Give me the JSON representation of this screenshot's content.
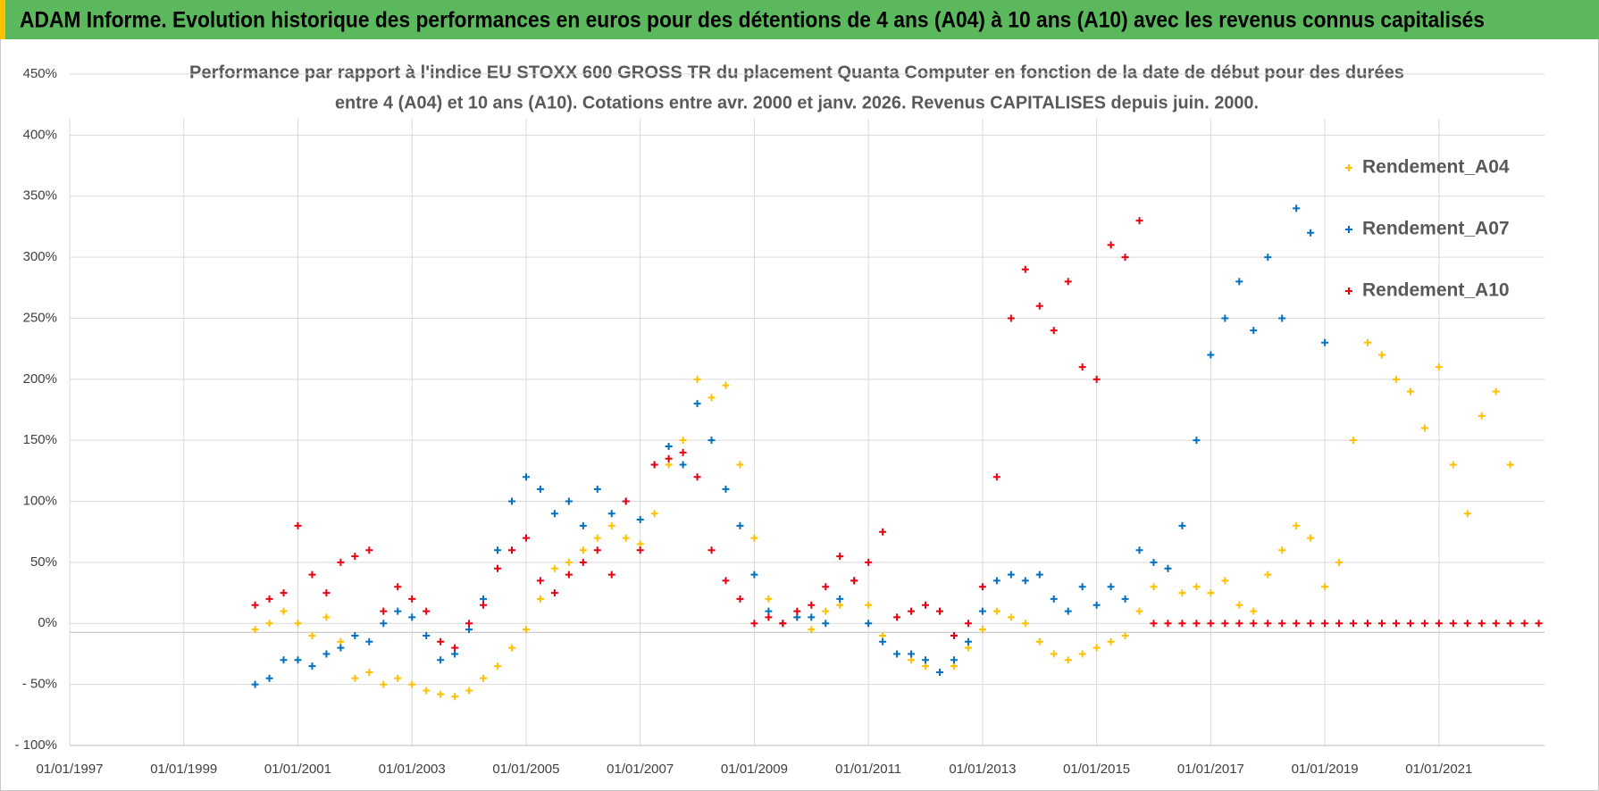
{
  "banner": "ADAM Informe. Evolution historique des performances en euros pour des détentions de 4 ans (A04) à 10 ans (A10) avec les revenus connus capitalisés",
  "chart_data": {
    "type": "scatter",
    "title": [
      "Performance par rapport à l'indice EU STOXX 600 GROSS TR  du placement Quanta Computer  en fonction de la date de début pour des durées",
      "entre 4 (A04) et 10 ans (A10).  Cotations entre avr. 2000 et janv. 2026. Revenus CAPITALISES depuis juin. 2000."
    ],
    "xlim": [
      1997,
      2022.85
    ],
    "xticks": [
      {
        "value": 1997,
        "label": "01/01/1997"
      },
      {
        "value": 1999,
        "label": "01/01/1999"
      },
      {
        "value": 2001,
        "label": "01/01/2001"
      },
      {
        "value": 2003,
        "label": "01/01/2003"
      },
      {
        "value": 2005,
        "label": "01/01/2005"
      },
      {
        "value": 2007,
        "label": "01/01/2007"
      },
      {
        "value": 2009,
        "label": "01/01/2009"
      },
      {
        "value": 2011,
        "label": "01/01/2011"
      },
      {
        "value": 2013,
        "label": "01/01/2013"
      },
      {
        "value": 2015,
        "label": "01/01/2015"
      },
      {
        "value": 2017,
        "label": "01/01/2017"
      },
      {
        "value": 2019,
        "label": "01/01/2019"
      },
      {
        "value": 2021,
        "label": "01/01/2021"
      }
    ],
    "ylim": [
      -100,
      450
    ],
    "yticks": [
      {
        "value": -100,
        "label": "- 100%"
      },
      {
        "value": -50,
        "label": "- 50%"
      },
      {
        "value": 0,
        "label": "0%"
      },
      {
        "value": 50,
        "label": "50%"
      },
      {
        "value": 100,
        "label": "100%"
      },
      {
        "value": 150,
        "label": "150%"
      },
      {
        "value": 200,
        "label": "200%"
      },
      {
        "value": 250,
        "label": "250%"
      },
      {
        "value": 300,
        "label": "300%"
      },
      {
        "value": 350,
        "label": "350%"
      },
      {
        "value": 400,
        "label": "400%"
      },
      {
        "value": 450,
        "label": "450%"
      }
    ],
    "grid": true,
    "legend": "upper right",
    "series": [
      {
        "name": "Rendement_A04",
        "color": "#ffc000",
        "x": [
          2000.25,
          2000.5,
          2000.75,
          2001,
          2001.25,
          2001.5,
          2001.75,
          2002,
          2002.25,
          2002.5,
          2002.75,
          2003,
          2003.25,
          2003.5,
          2003.75,
          2004,
          2004.25,
          2004.5,
          2004.75,
          2005,
          2005.25,
          2005.5,
          2005.75,
          2006,
          2006.25,
          2006.5,
          2006.75,
          2007,
          2007.25,
          2007.5,
          2007.75,
          2008,
          2008.25,
          2008.5,
          2008.75,
          2009,
          2009.25,
          2009.5,
          2009.75,
          2010,
          2010.25,
          2010.5,
          2010.75,
          2011,
          2011.25,
          2011.5,
          2011.75,
          2012,
          2012.25,
          2012.5,
          2012.75,
          2013,
          2013.25,
          2013.5,
          2013.75,
          2014,
          2014.25,
          2014.5,
          2014.75,
          2015,
          2015.25,
          2015.5,
          2015.75,
          2016,
          2016.25,
          2016.5,
          2016.75,
          2017,
          2017.25,
          2017.5,
          2017.75,
          2018,
          2018.25,
          2018.5,
          2018.75,
          2019,
          2019.25,
          2019.5,
          2019.75,
          2020,
          2020.25,
          2020.5,
          2020.75,
          2021,
          2021.25,
          2021.5,
          2021.75,
          2022,
          2022.25
        ],
        "values": [
          -5,
          0,
          10,
          0,
          -10,
          5,
          -15,
          -45,
          -40,
          -50,
          -45,
          -50,
          -55,
          -58,
          -60,
          -55,
          -45,
          -35,
          -20,
          -5,
          20,
          45,
          50,
          60,
          70,
          80,
          70,
          65,
          90,
          130,
          150,
          200,
          185,
          195,
          130,
          70,
          20,
          0,
          5,
          -5,
          10,
          15,
          35,
          15,
          -10,
          -25,
          -30,
          -35,
          -40,
          -35,
          -20,
          -5,
          10,
          5,
          0,
          -15,
          -25,
          -30,
          -25,
          -20,
          -15,
          -10,
          10,
          30,
          45,
          25,
          30,
          25,
          35,
          15,
          10,
          40,
          60,
          80,
          70,
          30,
          50,
          150,
          230,
          220,
          200,
          190,
          160,
          210,
          130,
          90,
          170,
          190,
          130
        ]
      },
      {
        "name": "Rendement_A07",
        "color": "#0070c0",
        "x": [
          2000.25,
          2000.5,
          2000.75,
          2001,
          2001.25,
          2001.5,
          2001.75,
          2002,
          2002.25,
          2002.5,
          2002.75,
          2003,
          2003.25,
          2003.5,
          2003.75,
          2004,
          2004.25,
          2004.5,
          2004.75,
          2005,
          2005.25,
          2005.5,
          2005.75,
          2006,
          2006.25,
          2006.5,
          2006.75,
          2007,
          2007.25,
          2007.5,
          2007.75,
          2008,
          2008.25,
          2008.5,
          2008.75,
          2009,
          2009.25,
          2009.5,
          2009.75,
          2010,
          2010.25,
          2010.5,
          2010.75,
          2011,
          2011.25,
          2011.5,
          2011.75,
          2012,
          2012.25,
          2012.5,
          2012.75,
          2013,
          2013.25,
          2013.5,
          2013.75,
          2014,
          2014.25,
          2014.5,
          2014.75,
          2015,
          2015.25,
          2015.5,
          2015.75,
          2016,
          2016.25,
          2016.5,
          2016.75,
          2017,
          2017.25,
          2017.5,
          2017.75,
          2018,
          2018.25,
          2018.5,
          2018.75,
          2019
        ],
        "values": [
          -50,
          -45,
          -30,
          -30,
          -35,
          -25,
          -20,
          -10,
          -15,
          0,
          10,
          5,
          -10,
          -30,
          -25,
          -5,
          20,
          60,
          100,
          120,
          110,
          90,
          100,
          80,
          110,
          90,
          100,
          85,
          130,
          145,
          130,
          180,
          150,
          110,
          80,
          40,
          10,
          0,
          5,
          5,
          0,
          20,
          35,
          0,
          -15,
          -25,
          -25,
          -30,
          -40,
          -30,
          -15,
          10,
          35,
          40,
          35,
          40,
          20,
          10,
          30,
          15,
          30,
          20,
          60,
          50,
          45,
          80,
          150,
          220,
          250,
          280,
          240,
          300,
          250,
          340,
          320,
          230
        ]
      },
      {
        "name": "Rendement_A10",
        "color": "#e8000f",
        "x": [
          2000.25,
          2000.5,
          2000.75,
          2001,
          2001.25,
          2001.5,
          2001.75,
          2002,
          2002.25,
          2002.5,
          2002.75,
          2003,
          2003.25,
          2003.5,
          2003.75,
          2004,
          2004.25,
          2004.5,
          2004.75,
          2005,
          2005.25,
          2005.5,
          2005.75,
          2006,
          2006.25,
          2006.5,
          2006.75,
          2007,
          2007.25,
          2007.5,
          2007.75,
          2008,
          2008.25,
          2008.5,
          2008.75,
          2009,
          2009.25,
          2009.5,
          2009.75,
          2010,
          2010.25,
          2010.5,
          2010.75,
          2011,
          2011.25,
          2011.5,
          2011.75,
          2012,
          2012.25,
          2012.5,
          2012.75,
          2013,
          2013.25,
          2013.5,
          2013.75,
          2014,
          2014.25,
          2014.5,
          2014.75,
          2015,
          2015.25,
          2015.5,
          2015.75,
          2016,
          2016.25,
          2016.5,
          2016.75,
          2017,
          2017.25,
          2017.5,
          2017.75,
          2018,
          2018.25,
          2018.5,
          2018.75,
          2019,
          2019.25,
          2019.5,
          2019.75,
          2020,
          2020.25,
          2020.5,
          2020.75,
          2021,
          2021.25,
          2021.5,
          2021.75,
          2022,
          2022.25,
          2022.5,
          2022.75
        ],
        "values": [
          15,
          20,
          25,
          80,
          40,
          25,
          50,
          55,
          60,
          10,
          30,
          20,
          10,
          -15,
          -20,
          0,
          15,
          45,
          60,
          70,
          35,
          25,
          40,
          50,
          60,
          40,
          100,
          60,
          130,
          135,
          140,
          120,
          60,
          35,
          20,
          0,
          5,
          0,
          10,
          15,
          30,
          55,
          35,
          50,
          75,
          5,
          10,
          15,
          10,
          -10,
          0,
          30,
          120,
          250,
          290,
          260,
          240,
          280,
          210,
          200,
          310,
          300,
          330,
          0,
          0,
          0,
          0,
          0,
          0,
          0,
          0,
          0,
          0,
          0,
          0,
          0,
          0,
          0,
          0,
          0,
          0,
          0,
          0,
          0,
          0,
          0,
          0,
          0,
          0,
          0,
          0
        ]
      }
    ]
  }
}
